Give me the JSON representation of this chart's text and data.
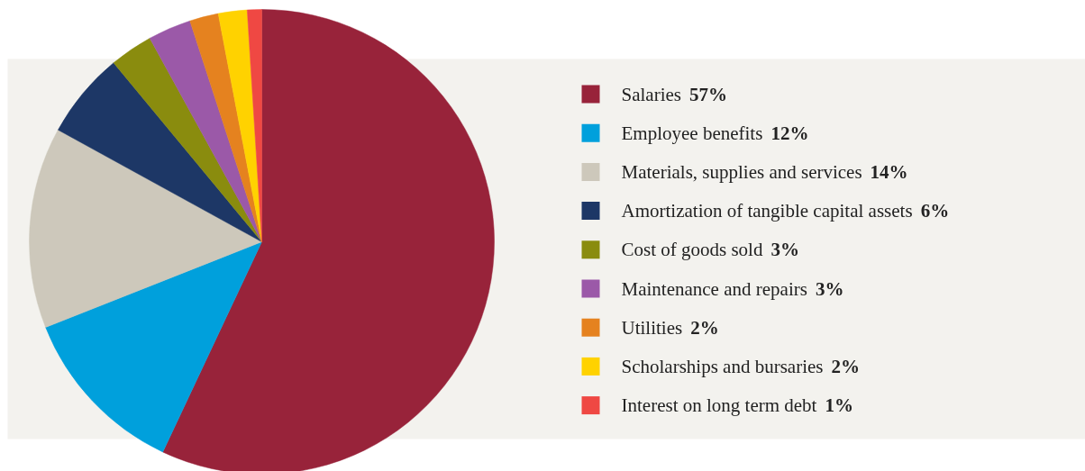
{
  "chart_data": {
    "type": "pie",
    "categories": [
      "Salaries",
      "Employee benefits",
      "Materials, supplies and services",
      "Amortization of tangible capital assets",
      "Cost of goods sold",
      "Maintenance and repairs",
      "Utilities",
      "Scholarships and bursaries",
      "Interest on long term debt"
    ],
    "values": [
      57,
      12,
      14,
      6,
      3,
      3,
      2,
      2,
      1
    ],
    "colors": [
      "#98233a",
      "#00a0dc",
      "#cdc8bb",
      "#1d3766",
      "#8a8c0e",
      "#9b59a8",
      "#e5821f",
      "#ffd200",
      "#ef4843"
    ],
    "value_labels": [
      "57%",
      "12%",
      "14%",
      "6%",
      "3%",
      "3%",
      "2%",
      "2%",
      "1%"
    ],
    "legend": "right"
  }
}
